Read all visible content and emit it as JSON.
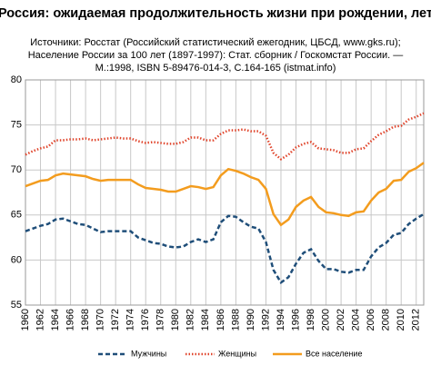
{
  "chart_data": {
    "type": "line",
    "title": "Россия: ожидаемая продолжительность жизни при рождении, лет",
    "subtitle": [
      "Источники: Росстат  (Российский статистический ежегодник, ЦБСД, www.gks.ru);",
      "Население России за  100 лет (1897-1997): Стат. сборник / Госкомстат России. —",
      "М.:1998, ISBN 5-89476-014-3, С.164-165 (istmat.info)"
    ],
    "x": [
      1960,
      1961,
      1962,
      1963,
      1964,
      1965,
      1966,
      1967,
      1968,
      1969,
      1970,
      1971,
      1972,
      1973,
      1974,
      1975,
      1976,
      1977,
      1978,
      1979,
      1980,
      1981,
      1982,
      1983,
      1984,
      1985,
      1986,
      1987,
      1988,
      1989,
      1990,
      1991,
      1992,
      1993,
      1994,
      1995,
      1996,
      1997,
      1998,
      1999,
      2000,
      2001,
      2002,
      2003,
      2004,
      2005,
      2006,
      2007,
      2008,
      2009,
      2010,
      2011,
      2012,
      2013
    ],
    "series": [
      {
        "name": "Мужчины",
        "color": "#1f4e79",
        "line_style": "dashed",
        "values": [
          63.2,
          63.5,
          63.8,
          64.0,
          64.5,
          64.6,
          64.3,
          64.0,
          63.9,
          63.5,
          63.1,
          63.2,
          63.2,
          63.2,
          63.2,
          62.5,
          62.2,
          61.9,
          61.8,
          61.5,
          61.4,
          61.5,
          62.0,
          62.3,
          62.0,
          62.3,
          64.2,
          64.9,
          64.8,
          64.2,
          63.7,
          63.5,
          62.0,
          58.9,
          57.5,
          58.1,
          59.6,
          60.8,
          61.2,
          59.9,
          59.0,
          59.0,
          58.7,
          58.6,
          58.9,
          58.9,
          60.4,
          61.4,
          61.9,
          62.8,
          63.0,
          64.0,
          64.6,
          65.1
        ]
      },
      {
        "name": "Женщины",
        "color": "#e0452c",
        "line_style": "dotted",
        "values": [
          71.7,
          72.1,
          72.4,
          72.6,
          73.3,
          73.3,
          73.4,
          73.4,
          73.5,
          73.3,
          73.4,
          73.5,
          73.6,
          73.5,
          73.5,
          73.2,
          73.0,
          73.1,
          73.0,
          72.9,
          72.9,
          73.1,
          73.6,
          73.6,
          73.3,
          73.3,
          74.0,
          74.4,
          74.4,
          74.5,
          74.3,
          74.3,
          73.8,
          71.9,
          71.2,
          71.7,
          72.5,
          72.9,
          73.1,
          72.4,
          72.3,
          72.2,
          71.9,
          71.9,
          72.3,
          72.4,
          73.2,
          73.9,
          74.3,
          74.8,
          74.9,
          75.6,
          75.9,
          76.3
        ]
      },
      {
        "name": "Все население",
        "color": "#f39c1e",
        "line_style": "solid",
        "values": [
          68.2,
          68.5,
          68.8,
          68.9,
          69.4,
          69.6,
          69.5,
          69.4,
          69.3,
          69.0,
          68.8,
          68.9,
          68.9,
          68.9,
          68.9,
          68.4,
          68.0,
          67.9,
          67.8,
          67.6,
          67.6,
          67.9,
          68.2,
          68.1,
          67.9,
          68.1,
          69.4,
          70.1,
          69.9,
          69.6,
          69.2,
          68.9,
          67.9,
          65.1,
          63.9,
          64.5,
          65.9,
          66.6,
          67.0,
          65.9,
          65.3,
          65.2,
          65.0,
          64.9,
          65.3,
          65.4,
          66.6,
          67.5,
          67.9,
          68.8,
          68.9,
          69.8,
          70.2,
          70.8
        ]
      }
    ],
    "xlim": [
      1960,
      2013
    ],
    "xticks": [
      1960,
      1962,
      1964,
      1966,
      1968,
      1970,
      1972,
      1974,
      1976,
      1978,
      1980,
      1982,
      1984,
      1986,
      1988,
      1990,
      1992,
      1994,
      1996,
      1998,
      2000,
      2002,
      2004,
      2006,
      2008,
      2010,
      2012
    ],
    "ylim": [
      55,
      80
    ],
    "yticks": [
      55,
      60,
      65,
      70,
      75,
      80
    ],
    "grid": true,
    "legend": "bottom"
  }
}
